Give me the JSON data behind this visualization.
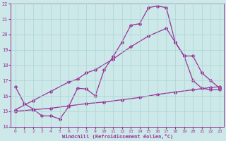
{
  "xlabel": "Windchill (Refroidissement éolien,°C)",
  "xlim": [
    -0.5,
    23.5
  ],
  "ylim": [
    14,
    22
  ],
  "yticks": [
    14,
    15,
    16,
    17,
    18,
    19,
    20,
    21,
    22
  ],
  "xticks": [
    0,
    1,
    2,
    3,
    4,
    5,
    6,
    7,
    8,
    9,
    10,
    11,
    12,
    13,
    14,
    15,
    16,
    17,
    18,
    19,
    20,
    21,
    22,
    23
  ],
  "bg_color": "#cce8e8",
  "grid_color": "#aad4d4",
  "line_color": "#993399",
  "line1_x": [
    0,
    1,
    2,
    3,
    4,
    5,
    6,
    7,
    8,
    9,
    10,
    11,
    12,
    13,
    14,
    15,
    16,
    17,
    18,
    19,
    20,
    21,
    22,
    23
  ],
  "line1_y": [
    16.6,
    15.5,
    15.15,
    14.7,
    14.7,
    14.5,
    15.3,
    16.5,
    16.45,
    16.0,
    17.7,
    18.55,
    19.5,
    20.6,
    20.7,
    21.75,
    21.85,
    21.75,
    19.5,
    18.6,
    17.0,
    16.5,
    16.4,
    16.4
  ],
  "line2_x": [
    0,
    2,
    4,
    6,
    7,
    8,
    9,
    11,
    13,
    15,
    17,
    18,
    19,
    20,
    21,
    22,
    23
  ],
  "line2_y": [
    15.1,
    15.7,
    16.3,
    16.9,
    17.1,
    17.5,
    17.7,
    18.4,
    19.2,
    19.9,
    20.4,
    19.5,
    18.6,
    18.6,
    17.5,
    17.0,
    16.5
  ],
  "line3_x": [
    0,
    2,
    4,
    6,
    8,
    10,
    12,
    14,
    16,
    18,
    20,
    22,
    23
  ],
  "line3_y": [
    15.0,
    15.1,
    15.2,
    15.35,
    15.5,
    15.6,
    15.75,
    15.9,
    16.1,
    16.25,
    16.4,
    16.55,
    16.6
  ],
  "marker": "D",
  "markersize": 2.0,
  "linewidth": 0.9
}
